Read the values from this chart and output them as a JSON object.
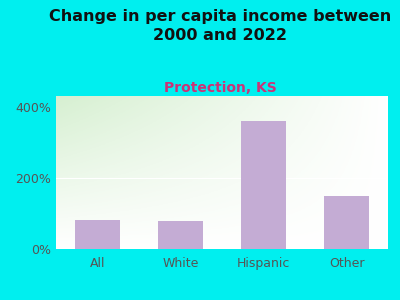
{
  "title": "Change in per capita income between\n2000 and 2022",
  "subtitle": "Protection, KS",
  "categories": [
    "All",
    "White",
    "Hispanic",
    "Other"
  ],
  "values": [
    82,
    80,
    360,
    150
  ],
  "bar_color": "#C4ACD4",
  "bg_color": "#00EFEF",
  "plot_bg_left": "#d8efd0",
  "plot_bg_right": "#f5f5f5",
  "title_fontsize": 11.5,
  "subtitle_fontsize": 10,
  "subtitle_color": "#cc3377",
  "title_color": "#111111",
  "tick_color": "#555555",
  "yticks": [
    0,
    200,
    400
  ],
  "ylim": [
    0,
    430
  ]
}
